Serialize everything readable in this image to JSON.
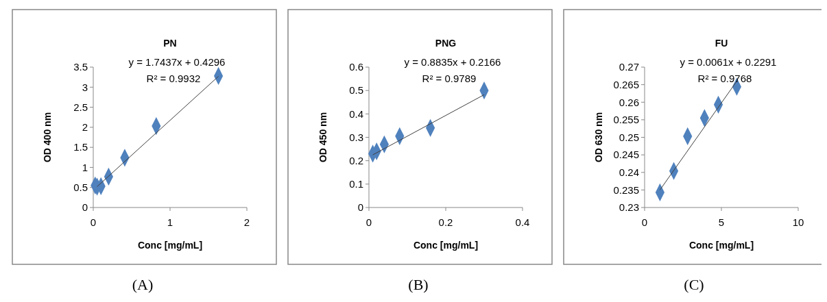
{
  "chart_data": [
    {
      "type": "scatter",
      "title": "PN",
      "xlabel": "Conc [mg/mL]",
      "ylabel": "OD 400 nm",
      "xlim": [
        0,
        2
      ],
      "xticks": [
        0,
        1,
        2
      ],
      "ylim": [
        0,
        3.5
      ],
      "yticks": [
        0,
        0.5,
        1,
        1.5,
        2,
        2.5,
        3,
        3.5
      ],
      "grid": false,
      "marker": "diamond",
      "annotations": [
        "y = 1.7437x + 0.4296",
        "R² = 0.9932",
        "(A)"
      ],
      "series": [
        {
          "color": "#4f81bd",
          "x": [
            0.025,
            0.05,
            0.1,
            0.2,
            0.41,
            0.82,
            1.63
          ],
          "values": [
            0.55,
            0.52,
            0.53,
            0.77,
            1.24,
            2.03,
            3.28
          ]
        },
        {
          "type": "line",
          "color": "#404040",
          "marker": "none",
          "line_style": "solid",
          "x": [
            0.05,
            1.63
          ],
          "values": [
            0.52,
            3.27
          ]
        }
      ]
    },
    {
      "type": "scatter",
      "title": "PNG",
      "xlabel": "Conc [mg/mL]",
      "ylabel": "OD 450 nm",
      "xlim": [
        0,
        0.4
      ],
      "xticks": [
        0,
        0.2,
        0.4
      ],
      "ylim": [
        0,
        0.6
      ],
      "yticks": [
        0,
        0.1,
        0.2,
        0.3,
        0.4,
        0.5,
        0.6
      ],
      "grid": false,
      "marker": "diamond",
      "annotations": [
        "y = 0.8835x + 0.2166",
        "R² = 0.9789",
        "(B)"
      ],
      "series": [
        {
          "color": "#4f81bd",
          "x": [
            0.01,
            0.02,
            0.04,
            0.08,
            0.16,
            0.3
          ],
          "values": [
            0.23,
            0.24,
            0.27,
            0.305,
            0.34,
            0.5
          ]
        },
        {
          "type": "line",
          "color": "#404040",
          "marker": "none",
          "line_style": "solid",
          "x": [
            0.01,
            0.3
          ],
          "values": [
            0.225,
            0.482
          ]
        }
      ]
    },
    {
      "type": "scatter",
      "title": "FU",
      "xlabel": "Conc [mg/mL]",
      "ylabel": "OD 630 nm",
      "xlim": [
        0,
        10
      ],
      "xticks": [
        0,
        5,
        10
      ],
      "ylim": [
        0.23,
        0.27
      ],
      "yticks": [
        0.23,
        0.235,
        0.24,
        0.245,
        0.25,
        0.255,
        0.26,
        0.265,
        0.27
      ],
      "grid": false,
      "marker": "diamond",
      "annotations": [
        "y = 0.0061x + 0.2291",
        "R² = 0.9768",
        "(C)"
      ],
      "series": [
        {
          "color": "#4f81bd",
          "x": [
            1,
            1.9,
            2.8,
            3.9,
            4.8,
            6
          ],
          "values": [
            0.2343,
            0.2404,
            0.2503,
            0.2555,
            0.2593,
            0.2644
          ]
        },
        {
          "type": "line",
          "color": "#404040",
          "marker": "none",
          "line_style": "solid",
          "x": [
            1,
            6
          ],
          "values": [
            0.235,
            0.266
          ]
        }
      ]
    }
  ]
}
